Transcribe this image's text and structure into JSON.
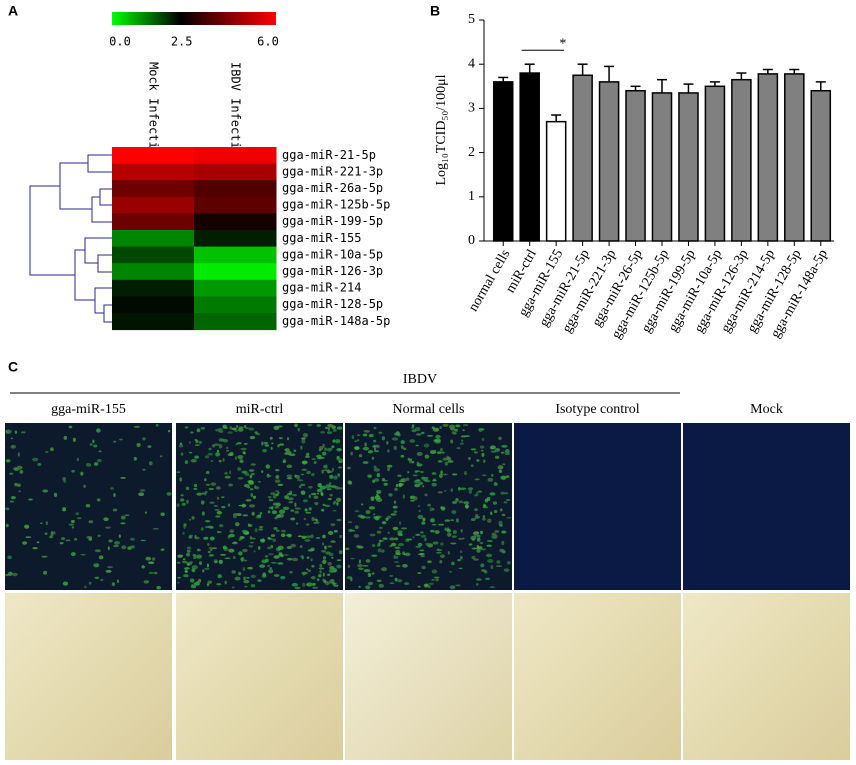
{
  "chart_data": [
    {
      "type": "heatmap",
      "panel_label": "A",
      "columns": [
        "Mock Infection",
        "IBDV Infection"
      ],
      "rows": [
        "gga-miR-21-5p",
        "gga-miR-221-3p",
        "gga-miR-26a-5p",
        "gga-miR-125b-5p",
        "gga-miR-199-5p",
        "gga-miR-155",
        "gga-miR-10a-5p",
        "gga-miR-126-3p",
        "gga-miR-214",
        "gga-miR-128-5p",
        "gga-miR-148a-5p"
      ],
      "values": [
        [
          6.0,
          5.8
        ],
        [
          5.0,
          4.8
        ],
        [
          4.0,
          3.6
        ],
        [
          4.6,
          3.8
        ],
        [
          4.0,
          2.8
        ],
        [
          1.2,
          2.2
        ],
        [
          1.8,
          0.6
        ],
        [
          1.2,
          0.2
        ],
        [
          2.2,
          1.0
        ],
        [
          2.4,
          1.3
        ],
        [
          2.3,
          1.5
        ]
      ],
      "colorscale": [
        "#00ff00",
        "#000000",
        "#ff0000"
      ],
      "clim": [
        0,
        6
      ],
      "cticks": [
        {
          "value": 0,
          "label": "0.0"
        },
        2.5,
        {
          "value": 6,
          "label": "6.0"
        }
      ]
    },
    {
      "type": "bar",
      "panel_label": "B",
      "ylabel": "Log₁₀TCID₅₀/100μl",
      "categories": [
        "normal cells",
        "miR-ctrl",
        "gga-miR-155",
        "gga-miR-21-5p",
        "gga-miR-221-3p",
        "gga-miR-26-5p",
        "gga-miR-125b-5p",
        "gga-miR-199-5p",
        "gga-miR-10a-5p",
        "gga-miR-126-3p",
        "gga-miR-214-5p",
        "gga-miR-128-5p",
        "gga-miR-148a-5p"
      ],
      "values": [
        3.6,
        3.8,
        2.7,
        3.75,
        3.6,
        3.4,
        3.35,
        3.35,
        3.5,
        3.65,
        3.78,
        3.78,
        3.4
      ],
      "errors": [
        0.1,
        0.2,
        0.15,
        0.25,
        0.35,
        0.1,
        0.3,
        0.2,
        0.1,
        0.15,
        0.1,
        0.1,
        0.2
      ],
      "colors": [
        "#000000",
        "#000000",
        "#ffffff",
        "#808080",
        "#808080",
        "#808080",
        "#808080",
        "#808080",
        "#808080",
        "#808080",
        "#808080",
        "#808080",
        "#808080"
      ],
      "ylim": [
        0,
        5
      ],
      "yticks": [
        0,
        1,
        2,
        3,
        4,
        5
      ],
      "annotations": [
        {
          "text": "*",
          "between": [
            "miR-ctrl",
            "gga-miR-155"
          ]
        }
      ]
    }
  ],
  "panel_c": {
    "panel_label": "C",
    "header": "IBDV",
    "columns": [
      "gga-miR-155",
      "miR-ctrl",
      "Normal cells",
      "Isotype control",
      "Mock"
    ]
  }
}
